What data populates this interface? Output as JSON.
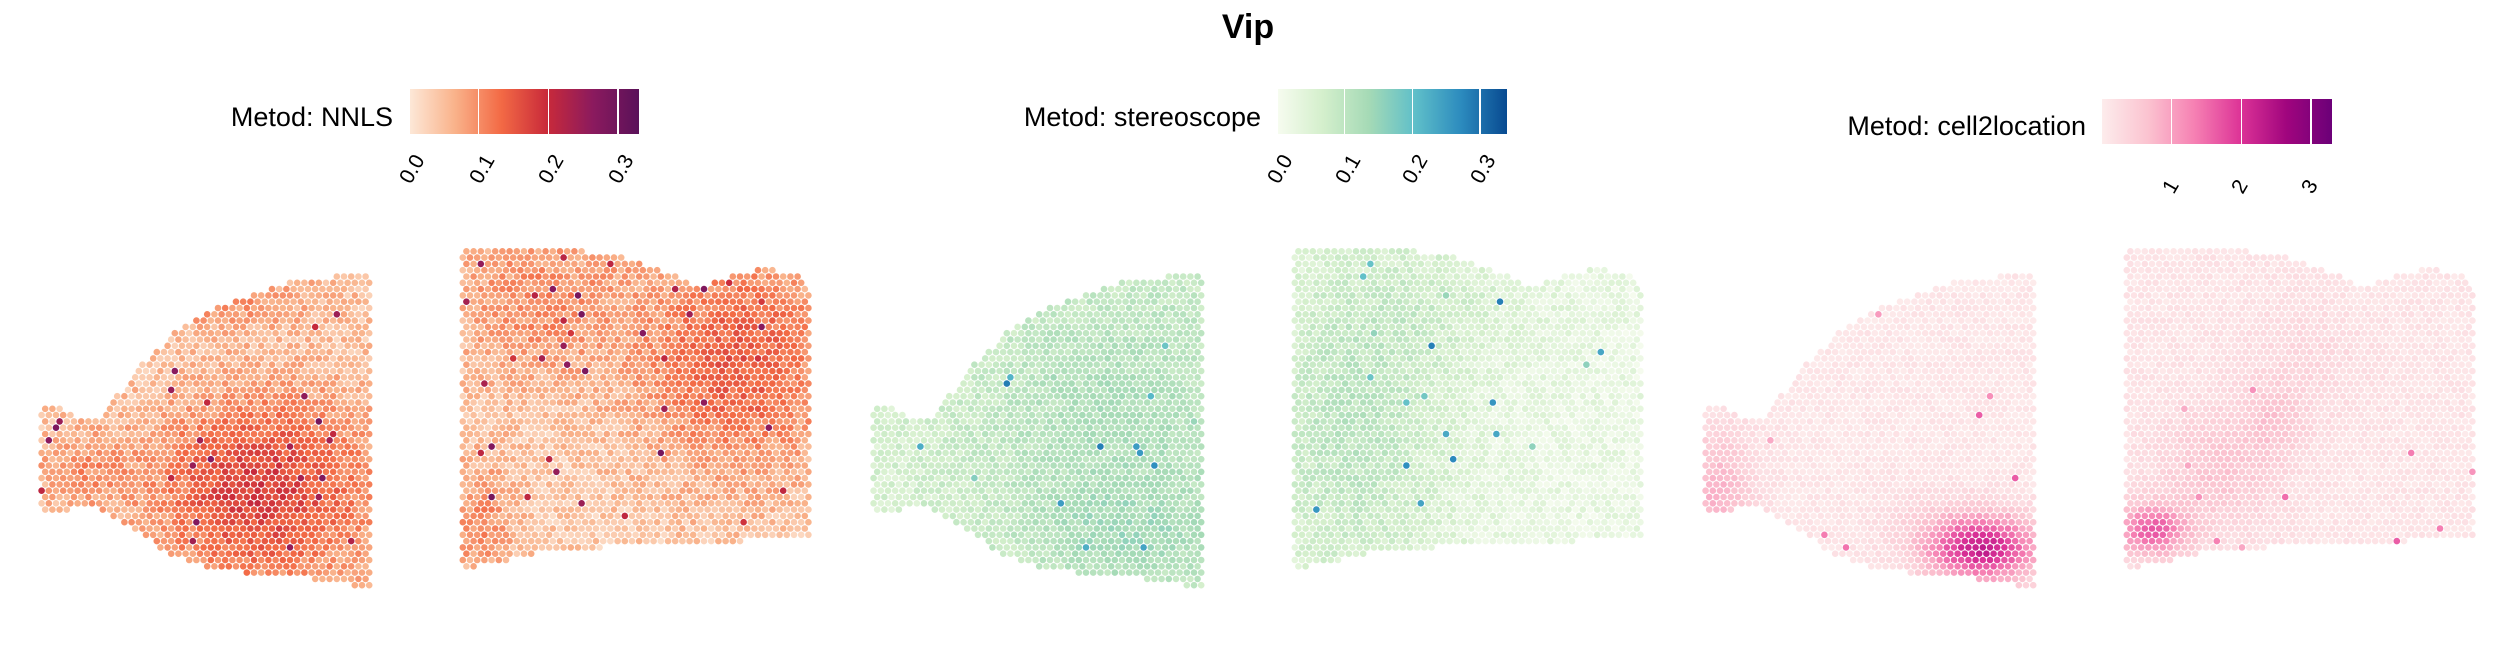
{
  "title": "Vip",
  "colors": {
    "nnls": [
      "#fde9d9",
      "#f9b28a",
      "#f36a45",
      "#c92a3a",
      "#8b1a5e",
      "#5a1159"
    ],
    "stereoscope": [
      "#f7fcf0",
      "#d4efcc",
      "#a5dab6",
      "#5fbfc9",
      "#2c8bbe",
      "#084a91"
    ],
    "cell2location": [
      "#fdecec",
      "#fbc3d0",
      "#f681b3",
      "#dd3497",
      "#a1057e",
      "#6b0078"
    ]
  },
  "chart_data": [
    {
      "type": "heatmap",
      "title": "Vip",
      "legend_title": "Metod: NNLS",
      "legend_ticks": [
        "0.0",
        "0.1",
        "0.2",
        "0.3"
      ],
      "legend_tick_values": [
        0.0,
        0.1,
        0.2,
        0.3
      ],
      "value_range": [
        0.0,
        0.33
      ],
      "colormap": "nnls",
      "legend_position": "top",
      "grid": false,
      "sections": 2
    },
    {
      "type": "heatmap",
      "title": "Vip",
      "legend_title": "Metod: stereoscope",
      "legend_ticks": [
        "0.0",
        "0.1",
        "0.2",
        "0.3"
      ],
      "legend_tick_values": [
        0.0,
        0.1,
        0.2,
        0.3
      ],
      "value_range": [
        0.0,
        0.34
      ],
      "colormap": "stereoscope",
      "legend_position": "top",
      "grid": false,
      "sections": 2
    },
    {
      "type": "heatmap",
      "title": "Vip",
      "legend_title": "Metod: cell2location",
      "legend_ticks": [
        "1",
        "2",
        "3"
      ],
      "legend_tick_values": [
        1,
        2,
        3
      ],
      "value_range": [
        0.0,
        3.3
      ],
      "colormap": "cell2location",
      "legend_position": "top",
      "grid": false,
      "sections": 2
    }
  ]
}
